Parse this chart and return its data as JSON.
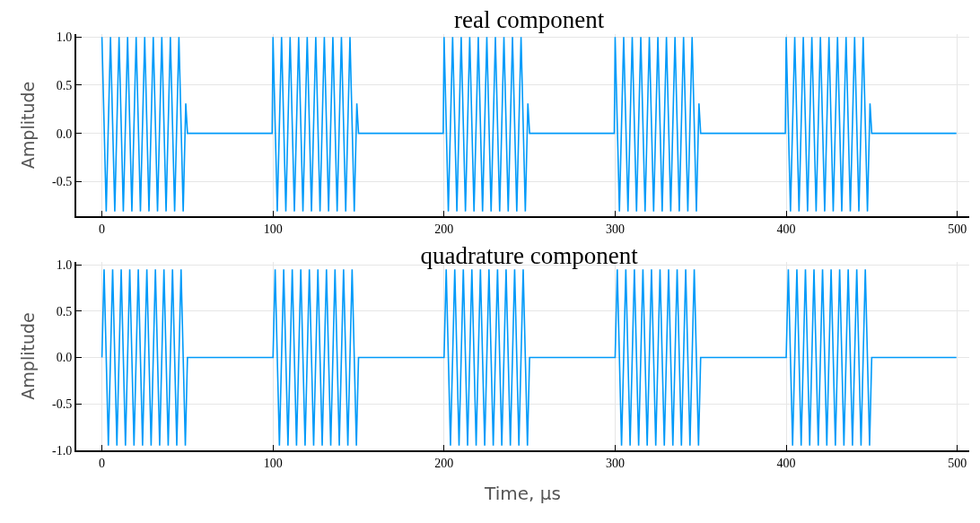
{
  "chart_data": [
    {
      "type": "line",
      "title": "real component",
      "ylabel": "Amplitude",
      "xlim": [
        -15,
        507
      ],
      "xticks": [
        0,
        100,
        200,
        300,
        400,
        500
      ],
      "ylim": [
        -0.86,
        1.03
      ],
      "yticks": [
        {
          "value": -0.5,
          "label": "-0.5"
        },
        {
          "value": 0,
          "label": "0.0"
        },
        {
          "value": 0.5,
          "label": "0.5"
        },
        {
          "value": 1,
          "label": "1.0"
        }
      ],
      "grid": true,
      "marker": "none",
      "line_style": "solid",
      "series": [
        {
          "color": "#009af9",
          "x": [
            0,
            2.5,
            5,
            7.5,
            10,
            12.5,
            15,
            17.5,
            20,
            22.5,
            25,
            27.5,
            30,
            32.5,
            35,
            37.5,
            40,
            42.5,
            45,
            47.5,
            49,
            50,
            99.5,
            100,
            102.5,
            105,
            107.5,
            110,
            112.5,
            115,
            117.5,
            120,
            122.5,
            125,
            127.5,
            130,
            132.5,
            135,
            137.5,
            140,
            142.5,
            145,
            147.5,
            149,
            150,
            199.5,
            200,
            202.5,
            205,
            207.5,
            210,
            212.5,
            215,
            217.5,
            220,
            222.5,
            225,
            227.5,
            230,
            232.5,
            235,
            237.5,
            240,
            242.5,
            245,
            247.5,
            249,
            250,
            299.5,
            300,
            302.5,
            305,
            307.5,
            310,
            312.5,
            315,
            317.5,
            320,
            322.5,
            325,
            327.5,
            330,
            332.5,
            335,
            337.5,
            340,
            342.5,
            345,
            347.5,
            349,
            350,
            399.5,
            400,
            402.5,
            405,
            407.5,
            410,
            412.5,
            415,
            417.5,
            420,
            422.5,
            425,
            427.5,
            430,
            432.5,
            435,
            437.5,
            440,
            442.5,
            445,
            447.5,
            449,
            450,
            499.5
          ],
          "values": [
            1,
            -0.81,
            1,
            -0.81,
            1,
            -0.81,
            1,
            -0.81,
            1,
            -0.81,
            1,
            -0.81,
            1,
            -0.81,
            1,
            -0.81,
            1,
            -0.81,
            1,
            -0.81,
            0.31,
            0,
            0,
            1,
            -0.81,
            1,
            -0.81,
            1,
            -0.81,
            1,
            -0.81,
            1,
            -0.81,
            1,
            -0.81,
            1,
            -0.81,
            1,
            -0.81,
            1,
            -0.81,
            1,
            -0.81,
            0.31,
            0,
            0,
            1,
            -0.81,
            1,
            -0.81,
            1,
            -0.81,
            1,
            -0.81,
            1,
            -0.81,
            1,
            -0.81,
            1,
            -0.81,
            1,
            -0.81,
            1,
            -0.81,
            1,
            -0.81,
            0.31,
            0,
            0,
            1,
            -0.81,
            1,
            -0.81,
            1,
            -0.81,
            1,
            -0.81,
            1,
            -0.81,
            1,
            -0.81,
            1,
            -0.81,
            1,
            -0.81,
            1,
            -0.81,
            1,
            -0.81,
            0.31,
            0,
            0,
            1,
            -0.81,
            1,
            -0.81,
            1,
            -0.81,
            1,
            -0.81,
            1,
            -0.81,
            1,
            -0.81,
            1,
            -0.81,
            1,
            -0.81,
            1,
            -0.81,
            1,
            -0.81,
            0.31,
            0,
            0
          ]
        }
      ]
    },
    {
      "type": "line",
      "title": "quadrature component",
      "xlabel": "Time, μs",
      "ylabel": "Amplitude",
      "xlim": [
        -15,
        507
      ],
      "xticks": [
        0,
        100,
        200,
        300,
        400,
        500
      ],
      "ylim": [
        -1,
        1.03
      ],
      "yticks": [
        {
          "value": -1,
          "label": "-1.0"
        },
        {
          "value": -0.5,
          "label": "-0.5"
        },
        {
          "value": 0,
          "label": "0.0"
        },
        {
          "value": 0.5,
          "label": "0.5"
        },
        {
          "value": 1,
          "label": "1.0"
        }
      ],
      "grid": true,
      "marker": "none",
      "line_style": "solid",
      "series": [
        {
          "color": "#009af9",
          "x": [
            0,
            1.25,
            3.75,
            6.25,
            8.75,
            11.25,
            13.75,
            16.25,
            18.75,
            21.25,
            23.75,
            26.25,
            28.75,
            31.25,
            33.75,
            36.25,
            38.75,
            41.25,
            43.75,
            46.25,
            48.75,
            50,
            99.5,
            100,
            101.25,
            103.75,
            106.25,
            108.75,
            111.25,
            113.75,
            116.25,
            118.75,
            121.25,
            123.75,
            126.25,
            128.75,
            131.25,
            133.75,
            136.25,
            138.75,
            141.25,
            143.75,
            146.25,
            148.75,
            150,
            199.5,
            200,
            201.25,
            203.75,
            206.25,
            208.75,
            211.25,
            213.75,
            216.25,
            218.75,
            221.25,
            223.75,
            226.25,
            228.75,
            231.25,
            233.75,
            236.25,
            238.75,
            241.25,
            243.75,
            246.25,
            248.75,
            250,
            299.5,
            300,
            301.25,
            303.75,
            306.25,
            308.75,
            311.25,
            313.75,
            316.25,
            318.75,
            321.25,
            323.75,
            326.25,
            328.75,
            331.25,
            333.75,
            336.25,
            338.75,
            341.25,
            343.75,
            346.25,
            348.75,
            350,
            399.5,
            400,
            401.25,
            403.75,
            406.25,
            408.75,
            411.25,
            413.75,
            416.25,
            418.75,
            421.25,
            423.75,
            426.25,
            428.75,
            431.25,
            433.75,
            436.25,
            438.75,
            441.25,
            443.75,
            446.25,
            448.75,
            450,
            499.5
          ],
          "values": [
            0,
            0.95,
            -0.95,
            0.95,
            -0.95,
            0.95,
            -0.95,
            0.95,
            -0.95,
            0.95,
            -0.95,
            0.95,
            -0.95,
            0.95,
            -0.95,
            0.95,
            -0.95,
            0.95,
            -0.95,
            0.95,
            -0.95,
            0,
            0,
            0,
            0.95,
            -0.95,
            0.95,
            -0.95,
            0.95,
            -0.95,
            0.95,
            -0.95,
            0.95,
            -0.95,
            0.95,
            -0.95,
            0.95,
            -0.95,
            0.95,
            -0.95,
            0.95,
            -0.95,
            0.95,
            -0.95,
            0,
            0,
            0,
            0.95,
            -0.95,
            0.95,
            -0.95,
            0.95,
            -0.95,
            0.95,
            -0.95,
            0.95,
            -0.95,
            0.95,
            -0.95,
            0.95,
            -0.95,
            0.95,
            -0.95,
            0.95,
            -0.95,
            0.95,
            -0.95,
            0,
            0,
            0,
            0.95,
            -0.95,
            0.95,
            -0.95,
            0.95,
            -0.95,
            0.95,
            -0.95,
            0.95,
            -0.95,
            0.95,
            -0.95,
            0.95,
            -0.95,
            0.95,
            -0.95,
            0.95,
            -0.95,
            0.95,
            -0.95,
            0,
            0,
            0,
            0.95,
            -0.95,
            0.95,
            -0.95,
            0.95,
            -0.95,
            0.95,
            -0.95,
            0.95,
            -0.95,
            0.95,
            -0.95,
            0.95,
            -0.95,
            0.95,
            -0.95,
            0.95,
            -0.95,
            0.95,
            -0.95,
            0,
            0
          ]
        }
      ]
    }
  ]
}
